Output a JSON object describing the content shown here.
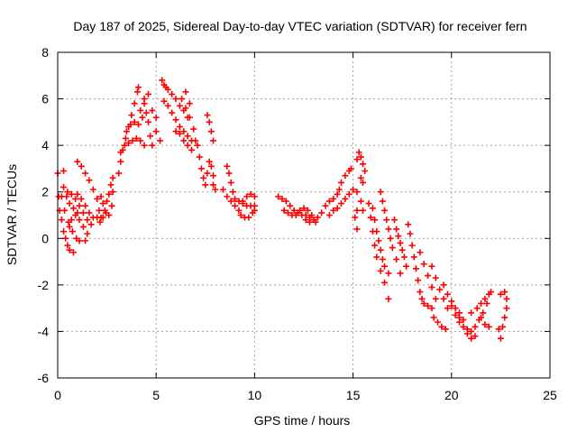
{
  "chart_data": {
    "type": "scatter",
    "title": "Day 187 of 2025, Sidereal Day-to-day VTEC variation (SDTVAR) for receiver fern",
    "xlabel": "GPS time / hours",
    "ylabel": "SDTVAR / TECUs",
    "xlim": [
      0,
      25
    ],
    "ylim": [
      -6,
      8
    ],
    "xticks": [
      0,
      5,
      10,
      15,
      20,
      25
    ],
    "yticks": [
      -6,
      -4,
      -2,
      0,
      2,
      4,
      6,
      8
    ],
    "x_tick_labels": [
      "0",
      "5",
      "10",
      "15",
      "20",
      "25"
    ],
    "y_tick_labels": [
      "-6",
      "-4",
      "-2",
      "0",
      "2",
      "4",
      "6",
      "8"
    ],
    "grid": true,
    "marker": "+",
    "color": "#ff0000",
    "series": [
      {
        "name": "SDTVAR",
        "points": [
          [
            0.0,
            2.8
          ],
          [
            0.3,
            2.9
          ],
          [
            0.05,
            1.8
          ],
          [
            0.1,
            1.2
          ],
          [
            0.2,
            0.8
          ],
          [
            0.3,
            0.3
          ],
          [
            0.4,
            0.0
          ],
          [
            0.5,
            -0.3
          ],
          [
            0.6,
            -0.5
          ],
          [
            0.8,
            -0.6
          ],
          [
            0.2,
            1.8
          ],
          [
            0.35,
            1.2
          ],
          [
            0.55,
            0.7
          ],
          [
            0.75,
            0.3
          ],
          [
            0.95,
            0.0
          ],
          [
            1.1,
            -0.1
          ],
          [
            1.4,
            -0.1
          ],
          [
            0.3,
            2.2
          ],
          [
            0.45,
            1.8
          ],
          [
            0.6,
            1.5
          ],
          [
            0.8,
            1.3
          ],
          [
            1.0,
            1.1
          ],
          [
            0.5,
            2.0
          ],
          [
            0.7,
            1.9
          ],
          [
            0.9,
            1.7
          ],
          [
            1.1,
            1.4
          ],
          [
            1.3,
            1.1
          ],
          [
            1.5,
            0.8
          ],
          [
            1.7,
            0.6
          ],
          [
            1.0,
            1.9
          ],
          [
            1.2,
            1.7
          ],
          [
            1.4,
            1.4
          ],
          [
            1.6,
            1.1
          ],
          [
            1.8,
            0.9
          ],
          [
            0.6,
            0.5
          ],
          [
            0.7,
            0.8
          ],
          [
            0.9,
            1.0
          ],
          [
            1.1,
            0.8
          ],
          [
            1.3,
            0.5
          ],
          [
            1.5,
            0.2
          ],
          [
            1.0,
            3.3
          ],
          [
            1.2,
            3.1
          ],
          [
            1.4,
            2.8
          ],
          [
            1.6,
            2.5
          ],
          [
            1.8,
            2.1
          ],
          [
            2.0,
            1.7
          ],
          [
            2.1,
            1.2
          ],
          [
            2.2,
            0.9
          ],
          [
            2.4,
            1.2
          ],
          [
            2.5,
            1.6
          ],
          [
            2.6,
            1.9
          ],
          [
            2.7,
            2.3
          ],
          [
            2.8,
            2.6
          ],
          [
            2.2,
            1.8
          ],
          [
            2.3,
            1.5
          ],
          [
            2.45,
            1.1
          ],
          [
            2.6,
            1.0
          ],
          [
            2.75,
            1.4
          ],
          [
            2.8,
            2.0
          ],
          [
            2.0,
            0.9
          ],
          [
            2.15,
            0.7
          ],
          [
            2.3,
            0.9
          ],
          [
            3.1,
            2.8
          ],
          [
            3.2,
            3.3
          ],
          [
            3.3,
            3.8
          ],
          [
            3.45,
            4.3
          ],
          [
            3.6,
            4.8
          ],
          [
            3.75,
            5.3
          ],
          [
            3.9,
            5.8
          ],
          [
            4.05,
            6.3
          ],
          [
            4.1,
            6.5
          ],
          [
            3.2,
            3.7
          ],
          [
            3.4,
            4.0
          ],
          [
            3.6,
            4.1
          ],
          [
            3.8,
            4.2
          ],
          [
            4.0,
            4.3
          ],
          [
            4.2,
            4.2
          ],
          [
            4.4,
            4.0
          ],
          [
            3.5,
            4.6
          ],
          [
            3.7,
            4.9
          ],
          [
            3.9,
            5.0
          ],
          [
            4.1,
            4.9
          ],
          [
            4.3,
            5.2
          ],
          [
            4.4,
            5.8
          ],
          [
            4.5,
            5.4
          ],
          [
            4.6,
            5.0
          ],
          [
            4.7,
            4.4
          ],
          [
            4.8,
            4.0
          ],
          [
            4.2,
            5.5
          ],
          [
            4.4,
            6.0
          ],
          [
            4.6,
            6.2
          ],
          [
            4.8,
            5.5
          ],
          [
            5.0,
            4.6
          ],
          [
            5.2,
            4.2
          ],
          [
            5.0,
            5.2
          ],
          [
            5.3,
            6.8
          ],
          [
            5.4,
            6.6
          ],
          [
            5.5,
            6.5
          ],
          [
            5.6,
            6.4
          ],
          [
            5.8,
            6.2
          ],
          [
            6.0,
            6.0
          ],
          [
            6.2,
            5.7
          ],
          [
            6.4,
            5.5
          ],
          [
            6.6,
            5.2
          ],
          [
            5.4,
            5.9
          ],
          [
            5.6,
            5.7
          ],
          [
            5.8,
            5.4
          ],
          [
            6.0,
            5.1
          ],
          [
            6.2,
            4.8
          ],
          [
            6.4,
            4.6
          ],
          [
            6.6,
            4.4
          ],
          [
            6.8,
            4.2
          ],
          [
            6.0,
            4.6
          ],
          [
            6.2,
            4.5
          ],
          [
            6.4,
            4.2
          ],
          [
            6.6,
            4.0
          ],
          [
            6.8,
            3.8
          ],
          [
            6.5,
            5.6
          ],
          [
            6.7,
            5.2
          ],
          [
            6.9,
            4.7
          ],
          [
            7.0,
            4.2
          ],
          [
            6.3,
            6.0
          ],
          [
            6.5,
            6.3
          ],
          [
            6.7,
            5.8
          ],
          [
            7.1,
            4.0
          ],
          [
            7.2,
            3.5
          ],
          [
            7.3,
            3.0
          ],
          [
            7.4,
            2.6
          ],
          [
            7.5,
            2.3
          ],
          [
            7.6,
            2.8
          ],
          [
            7.7,
            3.3
          ],
          [
            7.8,
            3.1
          ],
          [
            7.9,
            2.7
          ],
          [
            7.9,
            2.3
          ],
          [
            8.0,
            2.1
          ],
          [
            7.6,
            5.3
          ],
          [
            7.7,
            5.0
          ],
          [
            7.8,
            4.6
          ],
          [
            7.9,
            4.2
          ],
          [
            8.4,
            2.1
          ],
          [
            8.6,
            1.8
          ],
          [
            8.8,
            1.6
          ],
          [
            9.0,
            1.4
          ],
          [
            9.2,
            1.2
          ],
          [
            8.6,
            3.1
          ],
          [
            8.7,
            2.8
          ],
          [
            8.8,
            2.4
          ],
          [
            8.9,
            2.0
          ],
          [
            9.0,
            1.7
          ],
          [
            9.2,
            1.6
          ],
          [
            9.4,
            1.5
          ],
          [
            9.6,
            1.4
          ],
          [
            9.8,
            1.4
          ],
          [
            9.3,
            1.0
          ],
          [
            9.5,
            0.9
          ],
          [
            9.7,
            0.9
          ],
          [
            9.9,
            1.1
          ],
          [
            10.0,
            1.4
          ],
          [
            9.4,
            1.6
          ],
          [
            9.6,
            1.8
          ],
          [
            9.8,
            1.9
          ],
          [
            10.0,
            1.8
          ],
          [
            10.0,
            1.2
          ],
          [
            11.2,
            1.8
          ],
          [
            11.4,
            1.7
          ],
          [
            11.6,
            1.6
          ],
          [
            11.8,
            1.4
          ],
          [
            12.0,
            1.2
          ],
          [
            12.2,
            1.1
          ],
          [
            12.4,
            1.0
          ],
          [
            12.6,
            1.0
          ],
          [
            12.8,
            0.9
          ],
          [
            11.5,
            1.2
          ],
          [
            11.7,
            1.1
          ],
          [
            11.9,
            1.0
          ],
          [
            12.1,
            1.0
          ],
          [
            12.3,
            1.2
          ],
          [
            12.5,
            1.3
          ],
          [
            12.7,
            1.2
          ],
          [
            12.9,
            1.0
          ],
          [
            13.0,
            0.8
          ],
          [
            13.1,
            0.7
          ],
          [
            12.6,
            0.8
          ],
          [
            12.8,
            0.7
          ],
          [
            13.2,
            0.9
          ],
          [
            13.4,
            1.1
          ],
          [
            13.6,
            1.4
          ],
          [
            13.8,
            1.6
          ],
          [
            14.0,
            1.7
          ],
          [
            14.2,
            1.9
          ],
          [
            14.3,
            2.1
          ],
          [
            14.4,
            2.4
          ],
          [
            14.6,
            2.7
          ],
          [
            14.8,
            2.9
          ],
          [
            14.9,
            3.0
          ],
          [
            13.8,
            1.0
          ],
          [
            14.0,
            1.2
          ],
          [
            14.2,
            1.3
          ],
          [
            14.4,
            1.5
          ],
          [
            14.6,
            1.7
          ],
          [
            14.8,
            1.9
          ],
          [
            15.0,
            2.1
          ],
          [
            15.2,
            3.4
          ],
          [
            15.3,
            3.7
          ],
          [
            15.4,
            3.5
          ],
          [
            15.5,
            3.2
          ],
          [
            15.6,
            2.9
          ],
          [
            15.4,
            2.6
          ],
          [
            15.5,
            2.4
          ],
          [
            15.2,
            2.0
          ],
          [
            15.4,
            1.6
          ],
          [
            15.5,
            1.2
          ],
          [
            15.2,
            1.2
          ],
          [
            15.1,
            0.9
          ],
          [
            15.2,
            0.4
          ],
          [
            15.8,
            1.5
          ],
          [
            15.9,
            0.9
          ],
          [
            16.0,
            0.3
          ],
          [
            16.1,
            -0.3
          ],
          [
            16.2,
            -0.8
          ],
          [
            16.4,
            -1.4
          ],
          [
            16.6,
            -1.9
          ],
          [
            16.8,
            -2.6
          ],
          [
            16.0,
            1.3
          ],
          [
            16.1,
            0.8
          ],
          [
            16.2,
            0.3
          ],
          [
            16.3,
            -0.1
          ],
          [
            16.4,
            -0.5
          ],
          [
            16.5,
            -0.9
          ],
          [
            16.6,
            -1.2
          ],
          [
            16.8,
            -1.5
          ],
          [
            16.4,
            2.0
          ],
          [
            16.5,
            1.6
          ],
          [
            16.6,
            1.2
          ],
          [
            16.7,
            0.8
          ],
          [
            16.8,
            0.4
          ],
          [
            16.9,
            0.0
          ],
          [
            17.0,
            -0.4
          ],
          [
            17.2,
            -0.9
          ],
          [
            17.4,
            -1.5
          ],
          [
            17.1,
            0.8
          ],
          [
            17.2,
            0.4
          ],
          [
            17.3,
            0.1
          ],
          [
            17.4,
            -0.2
          ],
          [
            17.5,
            -0.5
          ],
          [
            17.6,
            -0.8
          ],
          [
            17.7,
            -1.2
          ],
          [
            17.8,
            0.6
          ],
          [
            17.9,
            0.2
          ],
          [
            18.0,
            -0.3
          ],
          [
            18.1,
            -0.8
          ],
          [
            18.2,
            -1.3
          ],
          [
            18.3,
            -1.8
          ],
          [
            18.4,
            -2.3
          ],
          [
            18.5,
            -2.6
          ],
          [
            18.6,
            -2.8
          ],
          [
            18.8,
            -2.9
          ],
          [
            18.4,
            -0.6
          ],
          [
            18.6,
            -1.1
          ],
          [
            18.8,
            -1.6
          ],
          [
            19.0,
            -2.1
          ],
          [
            19.2,
            -2.6
          ],
          [
            19.0,
            -1.2
          ],
          [
            19.2,
            -1.7
          ],
          [
            19.4,
            -2.2
          ],
          [
            19.6,
            -2.6
          ],
          [
            19.8,
            -3.0
          ],
          [
            19.0,
            -3.0
          ],
          [
            19.1,
            -3.4
          ],
          [
            19.3,
            -3.6
          ],
          [
            19.5,
            -3.8
          ],
          [
            19.7,
            -3.9
          ],
          [
            19.6,
            -2.0
          ],
          [
            19.8,
            -2.4
          ],
          [
            20.0,
            -2.9
          ],
          [
            20.2,
            -3.3
          ],
          [
            20.4,
            -3.6
          ],
          [
            20.0,
            -2.7
          ],
          [
            20.2,
            -3.0
          ],
          [
            20.4,
            -3.4
          ],
          [
            20.6,
            -3.8
          ],
          [
            20.8,
            -4.1
          ],
          [
            21.0,
            -4.3
          ],
          [
            21.2,
            -4.2
          ],
          [
            20.4,
            -3.2
          ],
          [
            20.6,
            -3.5
          ],
          [
            20.8,
            -3.9
          ],
          [
            21.0,
            -4.0
          ],
          [
            21.2,
            -3.8
          ],
          [
            21.4,
            -3.5
          ],
          [
            21.6,
            -3.2
          ],
          [
            21.8,
            -2.8
          ],
          [
            21.0,
            -3.2
          ],
          [
            21.3,
            -3.0
          ],
          [
            21.5,
            -2.8
          ],
          [
            21.7,
            -2.6
          ],
          [
            21.9,
            -2.4
          ],
          [
            22.0,
            -2.3
          ],
          [
            21.5,
            -3.4
          ],
          [
            21.7,
            -3.7
          ],
          [
            21.9,
            -3.8
          ],
          [
            22.4,
            -3.9
          ],
          [
            22.5,
            -4.3
          ],
          [
            22.6,
            -3.8
          ],
          [
            22.7,
            -3.4
          ],
          [
            22.8,
            -3.0
          ],
          [
            22.8,
            -2.6
          ],
          [
            22.7,
            -2.3
          ],
          [
            22.5,
            -2.4
          ]
        ]
      }
    ]
  }
}
